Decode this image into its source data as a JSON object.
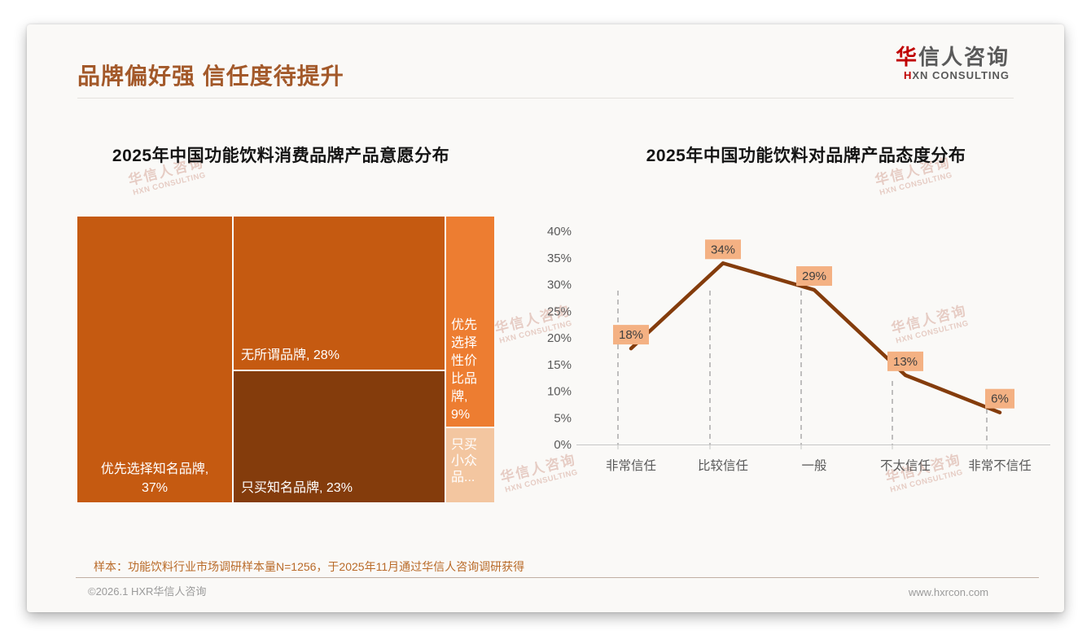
{
  "page": {
    "title": "品牌偏好强 信任度待提升",
    "logo": {
      "cn_accent": "华",
      "cn_rest": "信人咨询",
      "en_accent": "H",
      "en_rest": "XN CONSULTING"
    },
    "watermark": {
      "line1": "华信人咨询",
      "line2": "HXN CONSULTING"
    },
    "footnote": "样本：功能饮料行业市场调研样本量N=1256，于2025年11月通过华信人咨询调研获得",
    "footer": {
      "left": "©2026.1 HXR华信人咨询",
      "right": "www.hxrcon.com"
    }
  },
  "chart_data": [
    {
      "type": "treemap",
      "title": "2025年中国功能饮料消费品牌产品意愿分布",
      "items": [
        {
          "label": "优先选择知名品牌",
          "value": 37,
          "display": "优先选择知名品牌,\n37%",
          "color": "#C55A11",
          "text_color": "#FFFFFF"
        },
        {
          "label": "无所谓品牌",
          "value": 28,
          "display": "无所谓品牌, 28%",
          "color": "#C55A11",
          "text_color": "#FFFFFF"
        },
        {
          "label": "只买知名品牌",
          "value": 23,
          "display": "只买知名品牌, 23%",
          "color": "#843C0C",
          "text_color": "#FFFFFF"
        },
        {
          "label": "优先选择性价比品牌",
          "value": 9,
          "display": "优先选择性价比品牌, 9%",
          "color": "#ED7D31",
          "text_color": "#FFFFFF"
        },
        {
          "label": "只买小众品牌",
          "value": 3,
          "display": "只买小众品...",
          "color": "#F3C6A0",
          "text_color": "#FFFFFF"
        }
      ]
    },
    {
      "type": "line",
      "title": "2025年中国功能饮料对品牌产品态度分布",
      "categories": [
        "非常信任",
        "比较信任",
        "一般",
        "不太信任",
        "非常不信任"
      ],
      "values": [
        18,
        34,
        29,
        13,
        6
      ],
      "unit": "%",
      "ylim": [
        0,
        40
      ],
      "ytick_step": 5,
      "legend": "none",
      "grid": "vertical-dashed-droplines",
      "colors": {
        "line": "#843C0C",
        "label_bg": "#F4B183",
        "label_text": "#3F3F3F",
        "axis": "#C6C6C6",
        "gridline": "#ABABAB",
        "tick_text": "#595959"
      }
    }
  ]
}
